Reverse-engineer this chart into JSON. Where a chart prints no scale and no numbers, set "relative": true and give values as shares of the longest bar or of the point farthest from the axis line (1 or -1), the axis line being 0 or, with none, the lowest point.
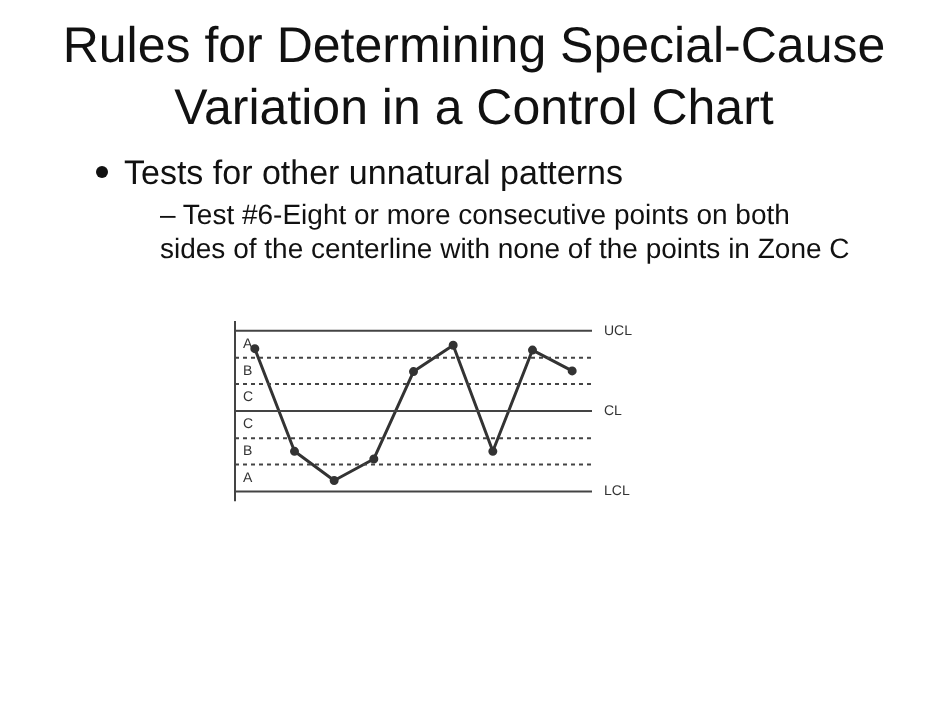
{
  "chart_data": {
    "type": "line",
    "title": "Rules for Determining Special-Cause Variation in a Control Chart",
    "annotations": [
      "Tests for other unnatural patterns",
      "– Test #6-Eight or more consecutive points on both sides of the centerline with none of the points in Zone C",
      "A",
      "B",
      "C",
      "C",
      "B",
      "A"
    ],
    "categories": [
      null,
      null,
      null,
      null,
      null,
      null,
      null,
      null,
      null
    ],
    "relative": true,
    "series": [
      {
        "color": "#333333",
        "values": [
          0.9,
          -0.58,
          -1,
          -0.69,
          0.57,
          0.95,
          -0.58,
          0.88,
          0.58
        ]
      }
    ],
    "ref_lines": [
      {
        "axis": "y",
        "value": 1.16,
        "label": "UCL"
      },
      {
        "axis": "y",
        "value": 0.77,
        "line_style": "dotted"
      },
      {
        "axis": "y",
        "value": 0.39,
        "line_style": "dotted"
      },
      {
        "axis": "y",
        "value": 0,
        "label": "CL"
      },
      {
        "axis": "y",
        "value": -0.39,
        "line_style": "dotted"
      },
      {
        "axis": "y",
        "value": -0.77,
        "line_style": "dotted"
      },
      {
        "axis": "y",
        "value": -1.16,
        "label": "LCL"
      }
    ],
    "marker": "circle",
    "line_style": "solid",
    "grid": false,
    "legend": false
  }
}
